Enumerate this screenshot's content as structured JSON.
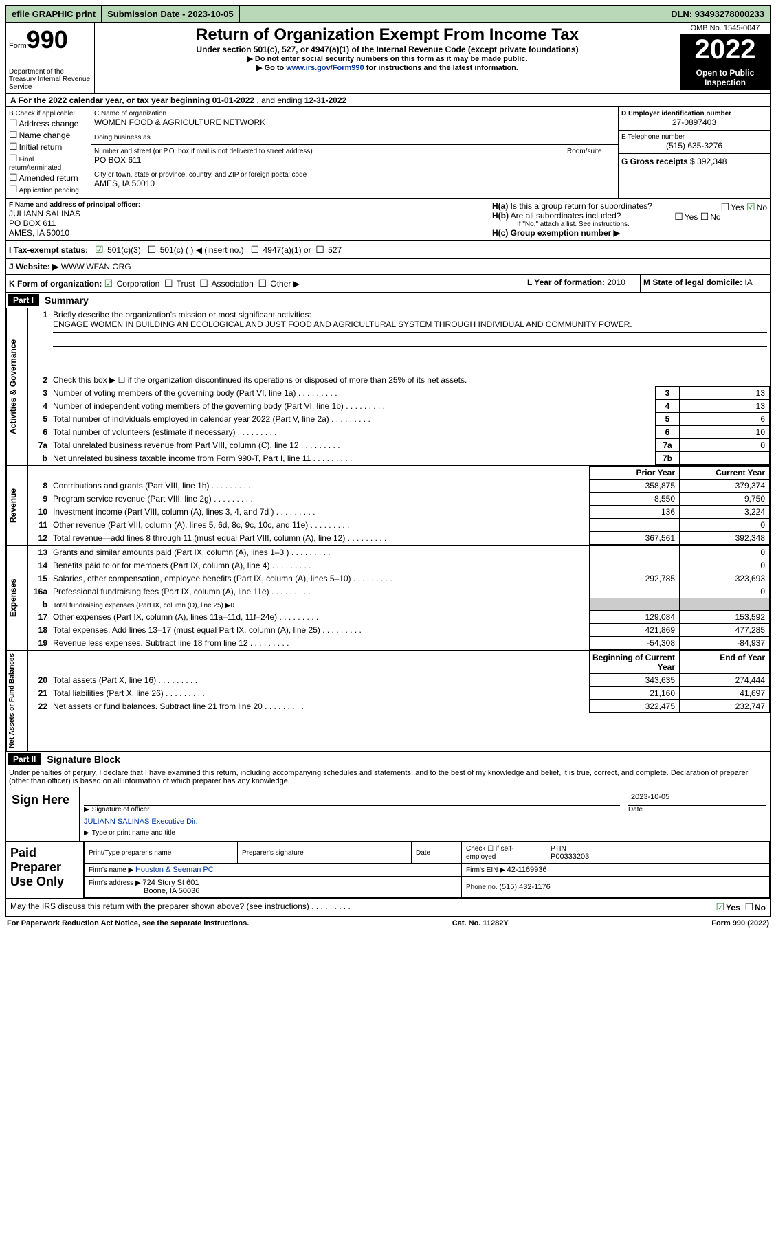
{
  "topbar": {
    "efile": "efile GRAPHIC print",
    "submission_label": "Submission Date - ",
    "submission_date": "2023-10-05",
    "dln_label": "DLN: ",
    "dln": "93493278000233"
  },
  "header": {
    "form_word": "Form",
    "form_num": "990",
    "dept": "Department of the Treasury\nInternal Revenue Service",
    "title": "Return of Organization Exempt From Income Tax",
    "subtitle": "Under section 501(c), 527, or 4947(a)(1) of the Internal Revenue Code (except private foundations)",
    "instr1": "▶ Do not enter social security numbers on this form as it may be made public.",
    "instr2_pre": "▶ Go to ",
    "instr2_link": "www.irs.gov/Form990",
    "instr2_post": " for instructions and the latest information.",
    "omb": "OMB No. 1545-0047",
    "year": "2022",
    "open": "Open to Public Inspection"
  },
  "row_a": {
    "text_pre": "A For the 2022 calendar year, or tax year beginning ",
    "begin": "01-01-2022",
    "mid": " , and ending ",
    "end": "12-31-2022"
  },
  "col_b": {
    "label": "B Check if applicable:",
    "items": [
      "Address change",
      "Name change",
      "Initial return",
      "Final return/terminated",
      "Amended return",
      "Application pending"
    ]
  },
  "col_c": {
    "name_label": "C Name of organization",
    "name": "WOMEN FOOD & AGRICULTURE NETWORK",
    "dba_label": "Doing business as",
    "dba": "",
    "street_label": "Number and street (or P.O. box if mail is not delivered to street address)",
    "room_label": "Room/suite",
    "street": "PO BOX 611",
    "city_label": "City or town, state or province, country, and ZIP or foreign postal code",
    "city": "AMES, IA  50010"
  },
  "col_d": {
    "ein_label": "D Employer identification number",
    "ein": "27-0897403",
    "phone_label": "E Telephone number",
    "phone": "(515) 635-3276",
    "gross_label": "G Gross receipts $ ",
    "gross": "392,348"
  },
  "row_fh": {
    "f_label": "F Name and address of principal officer:",
    "f_name": "JULIANN SALINAS",
    "f_addr1": "PO BOX 611",
    "f_addr2": "AMES, IA  50010",
    "ha_label": "H(a)  Is this a group return for subordinates?",
    "hb_label": "H(b)  Are all subordinates included?",
    "hb_note": "If \"No,\" attach a list. See instructions.",
    "hc_label": "H(c)  Group exemption number ▶",
    "yes": "Yes",
    "no": "No"
  },
  "row_i": {
    "label": "I  Tax-exempt status:",
    "opt1": "501(c)(3)",
    "opt2": "501(c) (  ) ◀ (insert no.)",
    "opt3": "4947(a)(1) or",
    "opt4": "527"
  },
  "row_j": {
    "label": "J  Website: ▶",
    "val": "WWW.WFAN.ORG"
  },
  "row_k": {
    "label": "K Form of organization:",
    "opts": [
      "Corporation",
      "Trust",
      "Association",
      "Other ▶"
    ],
    "l_label": "L Year of formation: ",
    "l_val": "2010",
    "m_label": "M State of legal domicile: ",
    "m_val": "IA"
  },
  "parts": {
    "p1": "Part I",
    "p1_title": "Summary",
    "p2": "Part II",
    "p2_title": "Signature Block"
  },
  "summary": {
    "line1_label": "Briefly describe the organization's mission or most significant activities:",
    "line1_val": "ENGAGE WOMEN IN BUILDING AN ECOLOGICAL AND JUST FOOD AND AGRICULTURAL SYSTEM THROUGH INDIVIDUAL AND COMMUNITY POWER.",
    "line2": "Check this box ▶ ☐ if the organization discontinued its operations or disposed of more than 25% of its net assets.",
    "lines_gov": [
      {
        "n": "3",
        "d": "Number of voting members of the governing body (Part VI, line 1a)",
        "i": "3",
        "v": "13"
      },
      {
        "n": "4",
        "d": "Number of independent voting members of the governing body (Part VI, line 1b)",
        "i": "4",
        "v": "13"
      },
      {
        "n": "5",
        "d": "Total number of individuals employed in calendar year 2022 (Part V, line 2a)",
        "i": "5",
        "v": "6"
      },
      {
        "n": "6",
        "d": "Total number of volunteers (estimate if necessary)",
        "i": "6",
        "v": "10"
      },
      {
        "n": "7a",
        "d": "Total unrelated business revenue from Part VIII, column (C), line 12",
        "i": "7a",
        "v": "0"
      },
      {
        "n": "b",
        "d": "Net unrelated business taxable income from Form 990-T, Part I, line 11",
        "i": "7b",
        "v": ""
      }
    ],
    "hdr_prior": "Prior Year",
    "hdr_current": "Current Year",
    "lines_rev": [
      {
        "n": "8",
        "d": "Contributions and grants (Part VIII, line 1h)",
        "p": "358,875",
        "c": "379,374"
      },
      {
        "n": "9",
        "d": "Program service revenue (Part VIII, line 2g)",
        "p": "8,550",
        "c": "9,750"
      },
      {
        "n": "10",
        "d": "Investment income (Part VIII, column (A), lines 3, 4, and 7d )",
        "p": "136",
        "c": "3,224"
      },
      {
        "n": "11",
        "d": "Other revenue (Part VIII, column (A), lines 5, 6d, 8c, 9c, 10c, and 11e)",
        "p": "",
        "c": "0"
      },
      {
        "n": "12",
        "d": "Total revenue—add lines 8 through 11 (must equal Part VIII, column (A), line 12)",
        "p": "367,561",
        "c": "392,348"
      }
    ],
    "lines_exp": [
      {
        "n": "13",
        "d": "Grants and similar amounts paid (Part IX, column (A), lines 1–3 )",
        "p": "",
        "c": "0"
      },
      {
        "n": "14",
        "d": "Benefits paid to or for members (Part IX, column (A), line 4)",
        "p": "",
        "c": "0"
      },
      {
        "n": "15",
        "d": "Salaries, other compensation, employee benefits (Part IX, column (A), lines 5–10)",
        "p": "292,785",
        "c": "323,693"
      },
      {
        "n": "16a",
        "d": "Professional fundraising fees (Part IX, column (A), line 11e)",
        "p": "",
        "c": "0"
      },
      {
        "n": "b",
        "d": "Total fundraising expenses (Part IX, column (D), line 25) ▶0",
        "p": "GREY",
        "c": "GREY"
      },
      {
        "n": "17",
        "d": "Other expenses (Part IX, column (A), lines 11a–11d, 11f–24e)",
        "p": "129,084",
        "c": "153,592"
      },
      {
        "n": "18",
        "d": "Total expenses. Add lines 13–17 (must equal Part IX, column (A), line 25)",
        "p": "421,869",
        "c": "477,285"
      },
      {
        "n": "19",
        "d": "Revenue less expenses. Subtract line 18 from line 12",
        "p": "-54,308",
        "c": "-84,937"
      }
    ],
    "hdr_begin": "Beginning of Current Year",
    "hdr_end": "End of Year",
    "lines_net": [
      {
        "n": "20",
        "d": "Total assets (Part X, line 16)",
        "p": "343,635",
        "c": "274,444"
      },
      {
        "n": "21",
        "d": "Total liabilities (Part X, line 26)",
        "p": "21,160",
        "c": "41,697"
      },
      {
        "n": "22",
        "d": "Net assets or fund balances. Subtract line 21 from line 20",
        "p": "322,475",
        "c": "232,747"
      }
    ],
    "side_gov": "Activities & Governance",
    "side_rev": "Revenue",
    "side_exp": "Expenses",
    "side_net": "Net Assets or Fund Balances"
  },
  "sig": {
    "penalty": "Under penalties of perjury, I declare that I have examined this return, including accompanying schedules and statements, and to the best of my knowledge and belief, it is true, correct, and complete. Declaration of preparer (other than officer) is based on all information of which preparer has any knowledge.",
    "sign_here": "Sign Here",
    "sig_officer": "Signature of officer",
    "date_label": "Date",
    "sig_date": "2023-10-05",
    "name_title": "JULIANN SALINAS  Executive Dir.",
    "type_label": "Type or print name and title"
  },
  "prep": {
    "label": "Paid Preparer Use Only",
    "h1": "Print/Type preparer's name",
    "h2": "Preparer's signature",
    "h3": "Date",
    "h4_pre": "Check ☐ if self-employed",
    "h5_label": "PTIN",
    "ptin": "P00333203",
    "firm_name_label": "Firm's name   ▶ ",
    "firm_name": "Houston & Seeman PC",
    "firm_ein_label": "Firm's EIN ▶ ",
    "firm_ein": "42-1169936",
    "firm_addr_label": "Firm's address ▶ ",
    "firm_addr1": "724 Story St 601",
    "firm_addr2": "Boone, IA  50036",
    "phone_label": "Phone no. ",
    "phone": "(515) 432-1176"
  },
  "discuss": {
    "q": "May the IRS discuss this return with the preparer shown above? (see instructions)",
    "yes": "Yes",
    "no": "No"
  },
  "footer": {
    "left": "For Paperwork Reduction Act Notice, see the separate instructions.",
    "mid": "Cat. No. 11282Y",
    "right": "Form 990 (2022)"
  }
}
